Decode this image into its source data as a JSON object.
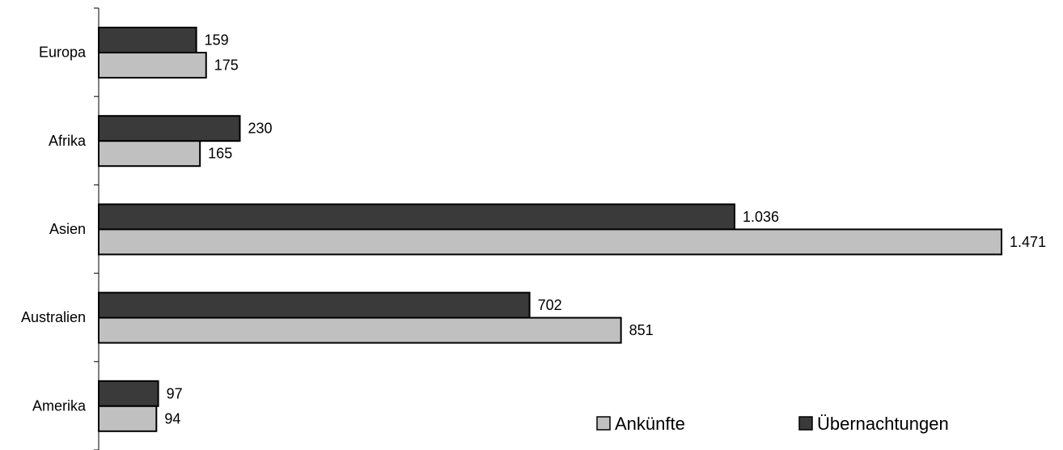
{
  "chart_data": {
    "type": "bar",
    "orientation": "horizontal",
    "categories": [
      "Europa",
      "Afrika",
      "Asien",
      "Australien",
      "Amerika"
    ],
    "series": [
      {
        "name": "Übernachtungen",
        "values": [
          159,
          230,
          1036,
          702,
          97
        ],
        "labels": [
          "159",
          "230",
          "1.036",
          "702",
          "97"
        ],
        "color": "#3a3a3a"
      },
      {
        "name": "Ankünfte",
        "values": [
          175,
          165,
          1471,
          851,
          94
        ],
        "labels": [
          "175",
          "165",
          "1.471",
          "851",
          "94"
        ],
        "color": "#c0c0c0"
      }
    ],
    "xlim": [
      0,
      1471
    ],
    "grid": false,
    "legend": {
      "position": "bottom-right",
      "order": [
        "Ankünfte",
        "Übernachtungen"
      ]
    }
  }
}
